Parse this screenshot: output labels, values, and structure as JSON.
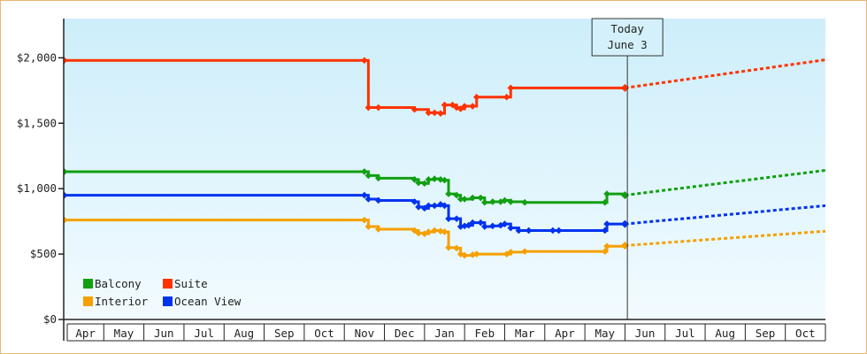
{
  "chart_data": {
    "type": "line",
    "title": "",
    "xlabel": "",
    "ylabel": "",
    "ylim": [
      0,
      2300
    ],
    "yticks": [
      {
        "value": 0,
        "label": "$0"
      },
      {
        "value": 500,
        "label": "$500"
      },
      {
        "value": 1000,
        "label": "$1,000"
      },
      {
        "value": 1500,
        "label": "$1,500"
      },
      {
        "value": 2000,
        "label": "$2,000"
      }
    ],
    "months": [
      "Apr",
      "May",
      "Jun",
      "Jul",
      "Aug",
      "Sep",
      "Oct",
      "Nov",
      "Dec",
      "Jan",
      "Feb",
      "Mar",
      "Apr",
      "May",
      "Jun",
      "Jul",
      "Aug",
      "Sep",
      "Oct"
    ],
    "x_range": [
      0,
      19
    ],
    "today": {
      "label_line1": "Today",
      "label_line2": "June 3",
      "x": 14.06
    },
    "grid": false,
    "legend": {
      "placement": "bottom-left"
    },
    "colors": {
      "plot_top": "#cdeefa",
      "plot_bottom": "#f2fbff",
      "frame_border": "#e8b676",
      "axis": "#222222"
    },
    "series": [
      {
        "name": "Suite",
        "color": "#ff3300",
        "points": [
          [
            0,
            1980
          ],
          [
            7.5,
            1980
          ],
          [
            7.6,
            1620
          ],
          [
            7.85,
            1620
          ],
          [
            8.75,
            1605
          ],
          [
            9.1,
            1580
          ],
          [
            9.25,
            1580
          ],
          [
            9.4,
            1575
          ],
          [
            9.5,
            1640
          ],
          [
            9.7,
            1640
          ],
          [
            9.8,
            1620
          ],
          [
            9.9,
            1610
          ],
          [
            10.0,
            1630
          ],
          [
            10.2,
            1630
          ],
          [
            10.3,
            1700
          ],
          [
            11.05,
            1700
          ],
          [
            11.15,
            1770
          ],
          [
            14.0,
            1770
          ]
        ],
        "projection": [
          [
            14.0,
            1770
          ],
          [
            19,
            1985
          ]
        ]
      },
      {
        "name": "Balcony",
        "color": "#11a011",
        "points": [
          [
            0,
            1130
          ],
          [
            7.5,
            1130
          ],
          [
            7.6,
            1100
          ],
          [
            7.85,
            1080
          ],
          [
            8.75,
            1070
          ],
          [
            8.85,
            1045
          ],
          [
            9.0,
            1040
          ],
          [
            9.1,
            1070
          ],
          [
            9.25,
            1075
          ],
          [
            9.4,
            1070
          ],
          [
            9.5,
            1065
          ],
          [
            9.6,
            960
          ],
          [
            9.8,
            950
          ],
          [
            9.9,
            920
          ],
          [
            10.0,
            920
          ],
          [
            10.2,
            930
          ],
          [
            10.4,
            930
          ],
          [
            10.5,
            895
          ],
          [
            10.7,
            900
          ],
          [
            10.9,
            900
          ],
          [
            11.0,
            910
          ],
          [
            11.15,
            900
          ],
          [
            11.5,
            895
          ],
          [
            13.5,
            895
          ],
          [
            13.55,
            960
          ],
          [
            14.0,
            950
          ]
        ],
        "projection": [
          [
            14.0,
            950
          ],
          [
            19,
            1140
          ]
        ]
      },
      {
        "name": "Ocean View",
        "color": "#0033ee",
        "points": [
          [
            0,
            950
          ],
          [
            7.5,
            950
          ],
          [
            7.6,
            920
          ],
          [
            7.85,
            910
          ],
          [
            8.75,
            900
          ],
          [
            8.85,
            860
          ],
          [
            9.0,
            850
          ],
          [
            9.1,
            870
          ],
          [
            9.25,
            870
          ],
          [
            9.4,
            880
          ],
          [
            9.5,
            870
          ],
          [
            9.6,
            770
          ],
          [
            9.8,
            770
          ],
          [
            9.9,
            710
          ],
          [
            10.0,
            715
          ],
          [
            10.1,
            720
          ],
          [
            10.2,
            740
          ],
          [
            10.4,
            740
          ],
          [
            10.5,
            710
          ],
          [
            10.7,
            715
          ],
          [
            10.9,
            720
          ],
          [
            11.0,
            730
          ],
          [
            11.15,
            700
          ],
          [
            11.35,
            680
          ],
          [
            11.6,
            680
          ],
          [
            12.2,
            680
          ],
          [
            12.35,
            680
          ],
          [
            13.5,
            680
          ],
          [
            13.55,
            730
          ],
          [
            14.0,
            730
          ]
        ],
        "projection": [
          [
            14.0,
            730
          ],
          [
            19,
            870
          ]
        ]
      },
      {
        "name": "Interior",
        "color": "#f5a000",
        "points": [
          [
            0,
            760
          ],
          [
            7.5,
            760
          ],
          [
            7.6,
            710
          ],
          [
            7.85,
            690
          ],
          [
            8.75,
            680
          ],
          [
            8.85,
            660
          ],
          [
            9.0,
            655
          ],
          [
            9.1,
            670
          ],
          [
            9.25,
            680
          ],
          [
            9.4,
            675
          ],
          [
            9.5,
            670
          ],
          [
            9.6,
            550
          ],
          [
            9.8,
            545
          ],
          [
            9.9,
            500
          ],
          [
            10.0,
            490
          ],
          [
            10.2,
            495
          ],
          [
            10.3,
            500
          ],
          [
            11.05,
            500
          ],
          [
            11.15,
            515
          ],
          [
            11.5,
            520
          ],
          [
            13.5,
            520
          ],
          [
            13.55,
            560
          ],
          [
            14.0,
            565
          ]
        ],
        "projection": [
          [
            14.0,
            565
          ],
          [
            19,
            675
          ]
        ]
      }
    ]
  },
  "legend_items": [
    {
      "name": "Balcony",
      "color": "#11a011"
    },
    {
      "name": "Suite",
      "color": "#ff3300"
    },
    {
      "name": "Interior",
      "color": "#f5a000"
    },
    {
      "name": "Ocean View",
      "color": "#0033ee"
    }
  ]
}
